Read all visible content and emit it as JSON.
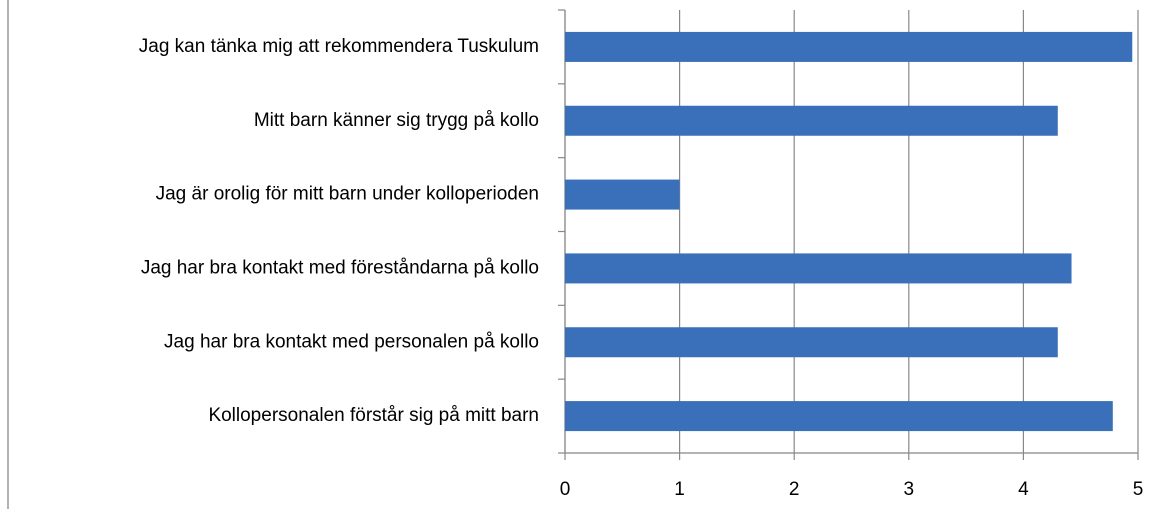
{
  "chart_data": {
    "type": "barh",
    "categories": [
      "Jag kan tänka mig att rekommendera Tuskulum",
      "Mitt barn känner sig trygg på kollo",
      "Jag är orolig för mitt barn under kolloperioden",
      "Jag har bra kontakt med föreståndarna på kollo",
      "Jag har bra kontakt med personalen på kollo",
      "Kollopersonalen förstår sig på mitt barn"
    ],
    "values": [
      4.95,
      4.3,
      1.0,
      4.42,
      4.3,
      4.78
    ],
    "color": "#3a6fba",
    "xlim": [
      0,
      5
    ],
    "xticks": [
      0,
      1,
      2,
      3,
      4,
      5
    ],
    "grid": true
  }
}
